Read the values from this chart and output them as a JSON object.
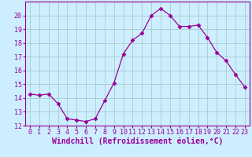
{
  "x": [
    0,
    1,
    2,
    3,
    4,
    5,
    6,
    7,
    8,
    9,
    10,
    11,
    12,
    13,
    14,
    15,
    16,
    17,
    18,
    19,
    20,
    21,
    22,
    23
  ],
  "y": [
    14.3,
    14.2,
    14.3,
    13.6,
    12.5,
    12.4,
    12.3,
    12.5,
    13.8,
    15.1,
    17.2,
    18.2,
    18.7,
    20.0,
    20.5,
    20.0,
    19.2,
    19.2,
    19.3,
    18.4,
    17.3,
    16.7,
    15.7,
    14.8
  ],
  "line_color": "#990099",
  "marker": "D",
  "marker_size": 2.5,
  "bg_color": "#cceeff",
  "grid_color": "#aacccc",
  "xlabel": "Windchill (Refroidissement éolien,°C)",
  "ylabel": "",
  "ylim": [
    12,
    21
  ],
  "xlim": [
    -0.5,
    23.5
  ],
  "yticks": [
    12,
    13,
    14,
    15,
    16,
    17,
    18,
    19,
    20
  ],
  "xticks": [
    0,
    1,
    2,
    3,
    4,
    5,
    6,
    7,
    8,
    9,
    10,
    11,
    12,
    13,
    14,
    15,
    16,
    17,
    18,
    19,
    20,
    21,
    22,
    23
  ],
  "tick_label_fontsize": 6,
  "xlabel_fontsize": 7
}
